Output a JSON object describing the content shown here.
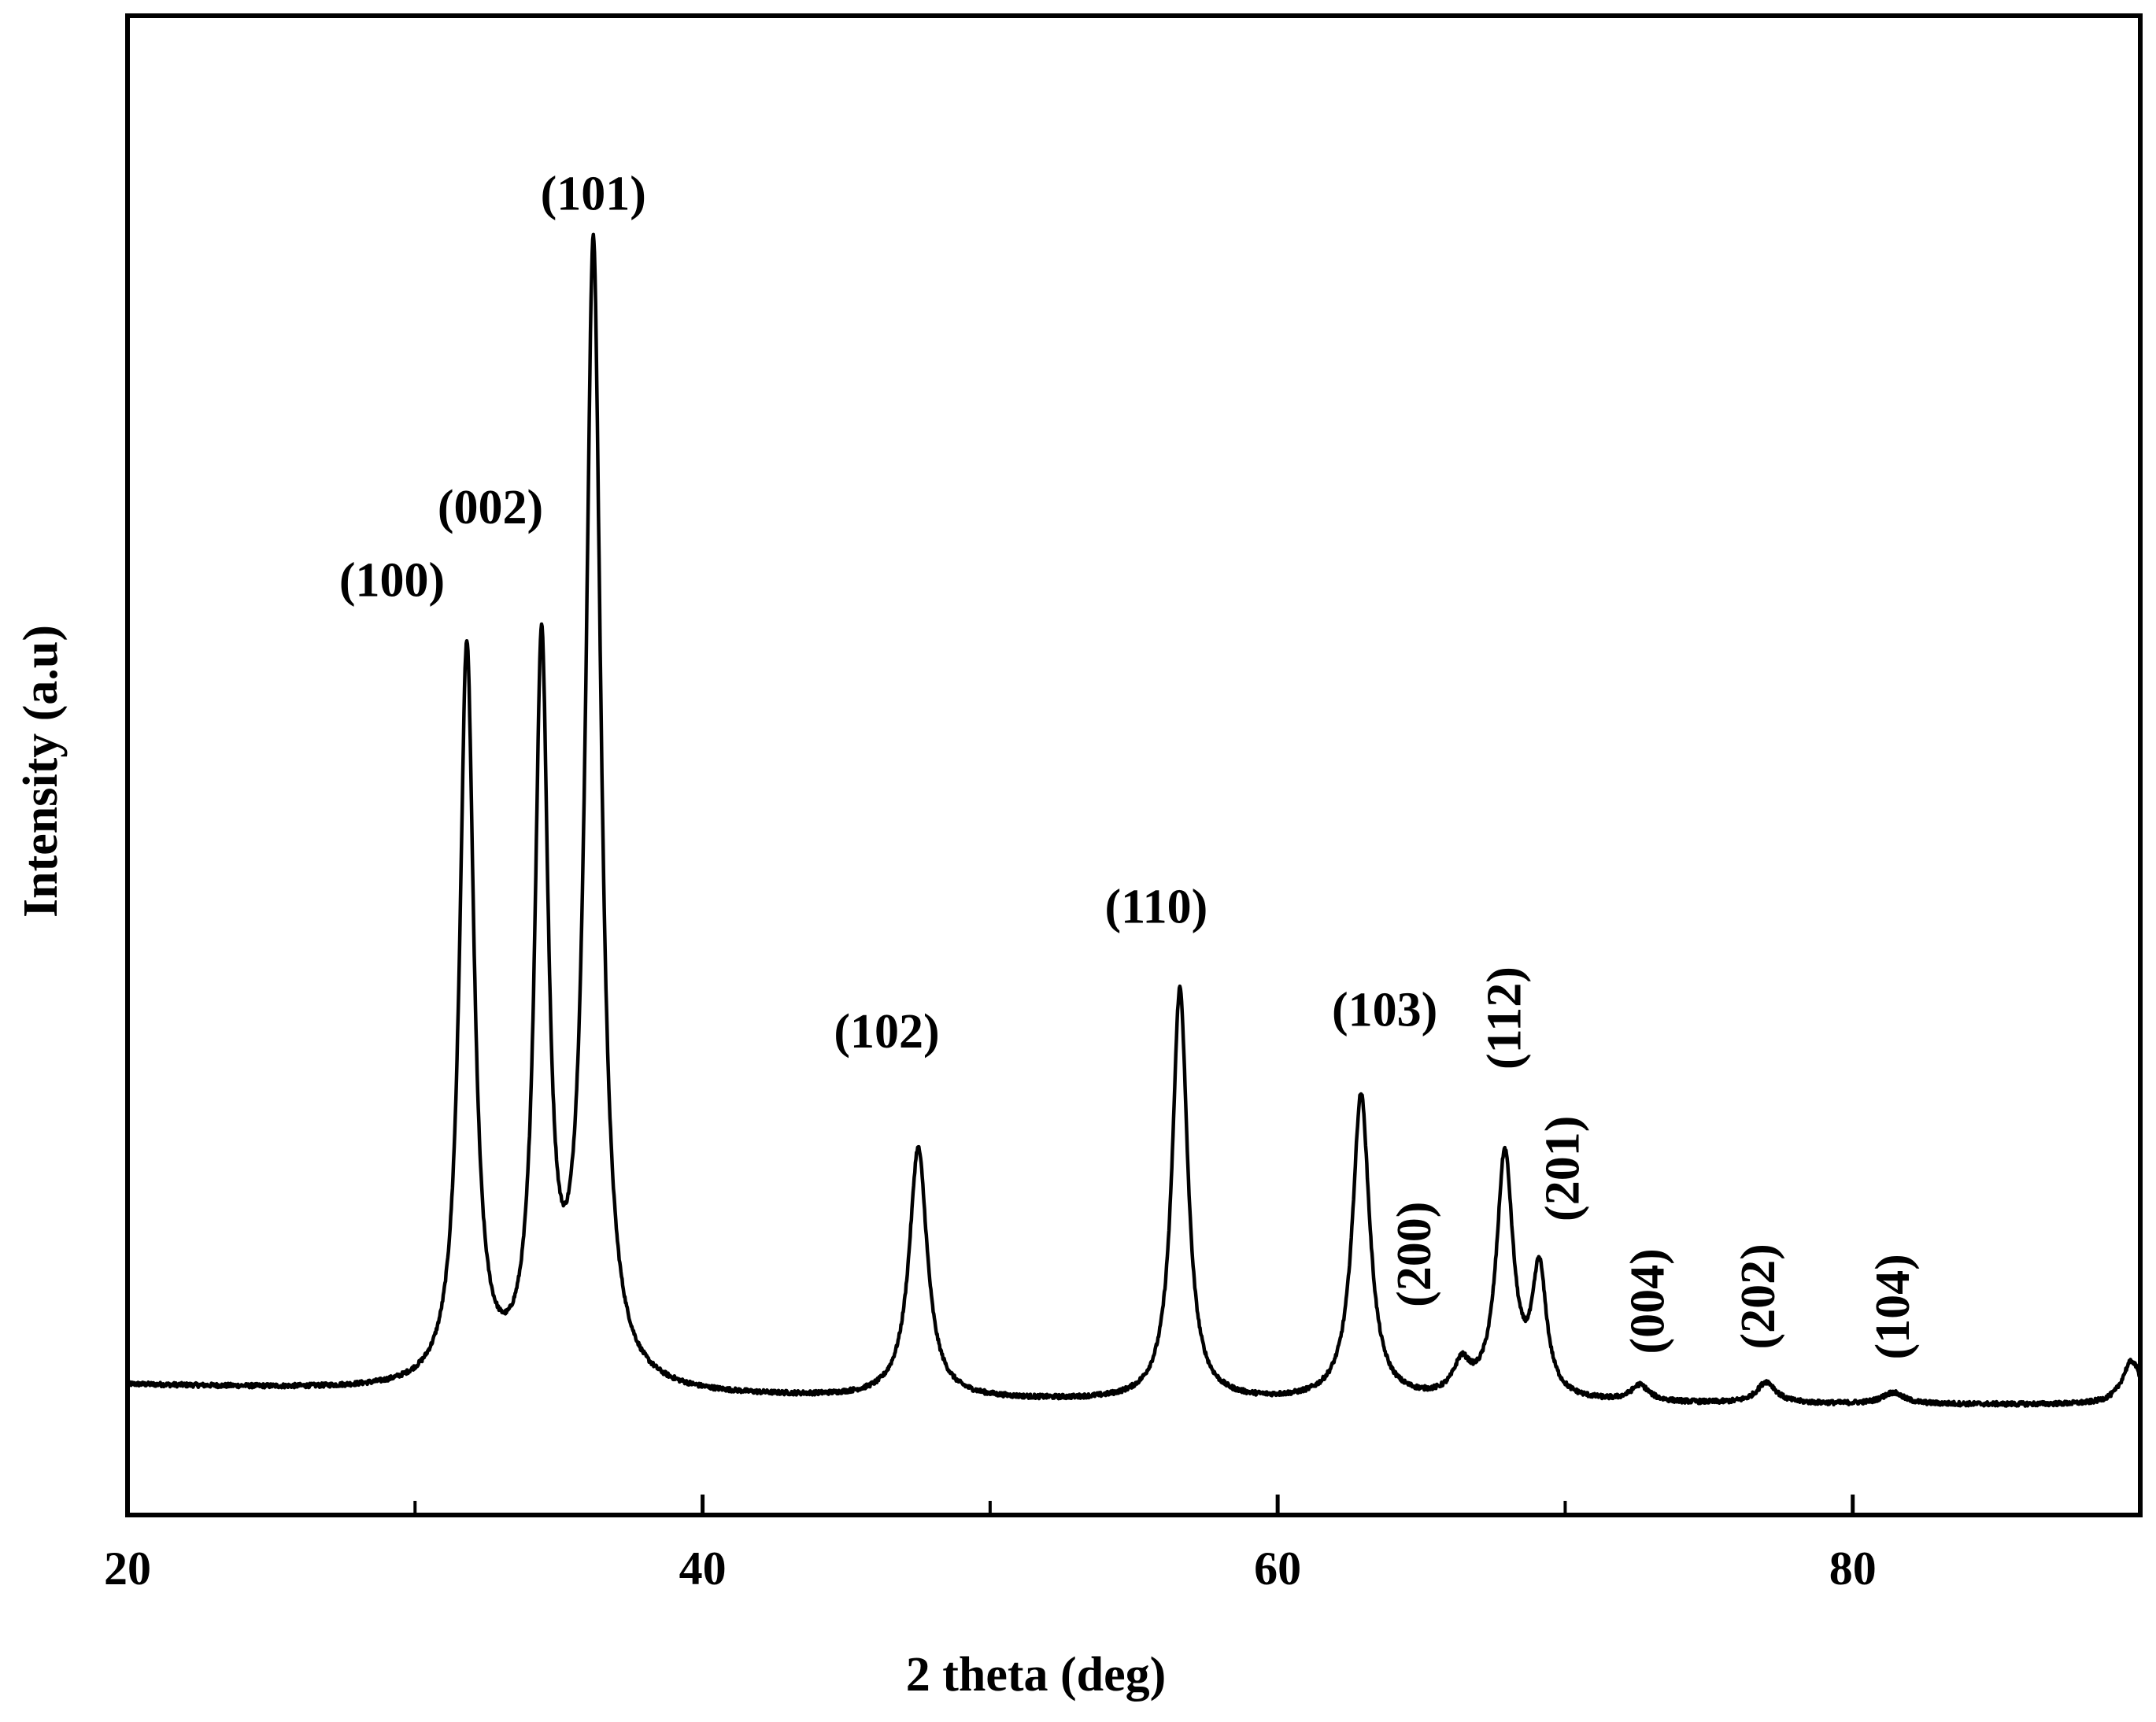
{
  "chart_data": {
    "type": "line",
    "title": "",
    "xlabel": "2 theta (deg)",
    "ylabel": "Intensity (a.u)",
    "xlim": [
      20,
      90
    ],
    "ylim": [
      0,
      1000
    ],
    "xticks_major": [
      20,
      40,
      60,
      80
    ],
    "xticks_minor": [
      30,
      50,
      70
    ],
    "grid": false,
    "legend": "none",
    "line_color": "#000000",
    "baseline": [
      [
        20,
        100
      ],
      [
        30,
        94
      ],
      [
        40,
        90
      ],
      [
        55,
        86
      ],
      [
        70,
        85
      ],
      [
        90,
        84
      ]
    ],
    "peaks": [
      {
        "label": "(100)",
        "x": 31.8,
        "y": 590,
        "width": 0.3,
        "label_rotated": false
      },
      {
        "label": "(002)",
        "x": 34.4,
        "y": 580,
        "width": 0.28,
        "label_rotated": false
      },
      {
        "label": "(101)",
        "x": 36.2,
        "y": 910,
        "width": 0.32,
        "label_rotated": false
      },
      {
        "label": "(102)",
        "x": 47.5,
        "y": 200,
        "width": 0.38,
        "label_rotated": false
      },
      {
        "label": "(110)",
        "x": 56.6,
        "y": 330,
        "width": 0.32,
        "label_rotated": false
      },
      {
        "label": "(103)",
        "x": 62.9,
        "y": 245,
        "width": 0.36,
        "label_rotated": false
      },
      {
        "label": "(200)",
        "x": 66.4,
        "y": 25,
        "width": 0.35,
        "label_rotated": true
      },
      {
        "label": "(112)",
        "x": 67.9,
        "y": 195,
        "width": 0.35,
        "label_rotated": true
      },
      {
        "label": "(201)",
        "x": 69.1,
        "y": 100,
        "width": 0.3,
        "label_rotated": true
      },
      {
        "label": "(004)",
        "x": 72.6,
        "y": 13,
        "width": 0.38,
        "label_rotated": true
      },
      {
        "label": "(202)",
        "x": 77.0,
        "y": 17,
        "width": 0.4,
        "label_rotated": true
      },
      {
        "label": "(104)",
        "x": 81.4,
        "y": 9,
        "width": 0.45,
        "label_rotated": true
      },
      {
        "label": "",
        "x": 89.7,
        "y": 35,
        "width": 0.4,
        "label_rotated": false
      }
    ]
  }
}
